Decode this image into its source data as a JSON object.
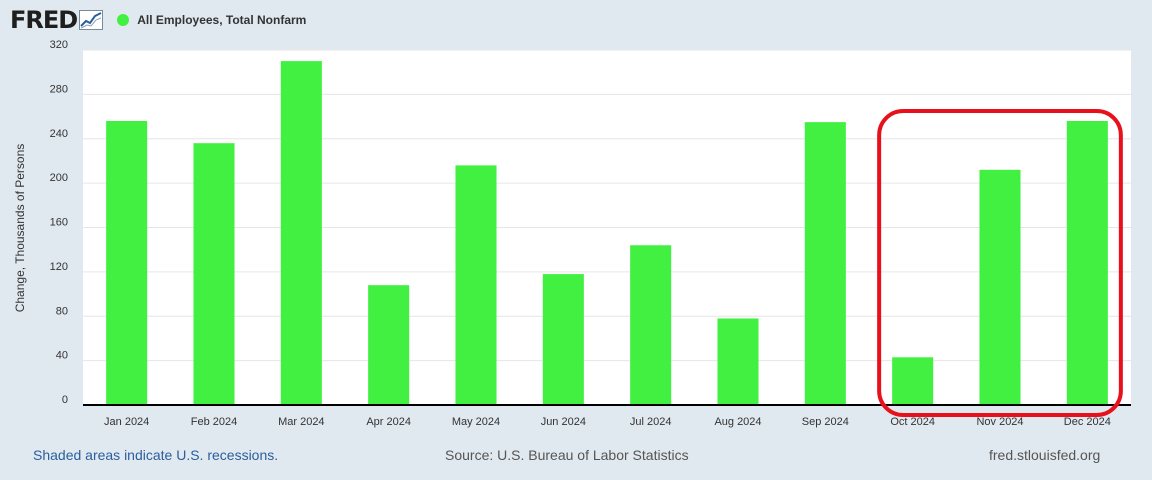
{
  "header": {
    "logo_text": "FRED",
    "legend_label": "All Employees, Total Nonfarm",
    "series_color": "#42f042"
  },
  "chart_data": {
    "type": "bar",
    "title": "",
    "xlabel": "",
    "ylabel": "Change, Thousands of Persons",
    "categories": [
      "Jan 2024",
      "Feb 2024",
      "Mar 2024",
      "Apr 2024",
      "May 2024",
      "Jun 2024",
      "Jul 2024",
      "Aug 2024",
      "Sep 2024",
      "Oct 2024",
      "Nov 2024",
      "Dec 2024"
    ],
    "series": [
      {
        "name": "All Employees, Total Nonfarm",
        "values": [
          256,
          236,
          310,
          108,
          216,
          118,
          144,
          78,
          255,
          43,
          212,
          256
        ]
      }
    ],
    "ylim": [
      0,
      320
    ],
    "yticks": [
      0,
      40,
      80,
      120,
      160,
      200,
      240,
      280,
      320
    ],
    "grid": true,
    "highlight": {
      "categories": [
        "Oct 2024",
        "Nov 2024",
        "Dec 2024"
      ],
      "color": "#e8101a"
    }
  },
  "footer": {
    "recession_note": "Shaded areas indicate U.S. recessions.",
    "source": "Source: U.S. Bureau of Labor Statistics",
    "site": "fred.stlouisfed.org"
  }
}
